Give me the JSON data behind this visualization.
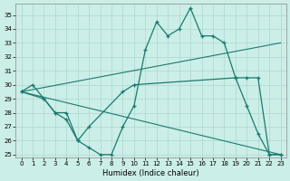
{
  "xlabel": "Humidex (Indice chaleur)",
  "bg_color": "#cceee8",
  "grid_color": "#aad8d0",
  "line_color": "#1a7a6e",
  "xlim": [
    -0.5,
    23.5
  ],
  "ylim": [
    24.8,
    35.8
  ],
  "yticks": [
    25,
    26,
    27,
    28,
    29,
    30,
    31,
    32,
    33,
    34,
    35
  ],
  "xticks": [
    0,
    1,
    2,
    3,
    4,
    5,
    6,
    7,
    8,
    9,
    10,
    11,
    12,
    13,
    14,
    15,
    16,
    17,
    18,
    19,
    20,
    21,
    22,
    23
  ],
  "line1_x": [
    0,
    1,
    2,
    3,
    4,
    5,
    6,
    7,
    8,
    9,
    10,
    11,
    12,
    13,
    14,
    15,
    16,
    17,
    18,
    19,
    20,
    21,
    22,
    23
  ],
  "line1_y": [
    29.5,
    30.0,
    29.0,
    28.0,
    28.0,
    26.0,
    25.5,
    25.0,
    25.0,
    27.0,
    28.5,
    32.5,
    34.5,
    33.5,
    34.0,
    35.5,
    33.5,
    33.5,
    33.0,
    30.5,
    28.5,
    26.5,
    25.0,
    25.0
  ],
  "line2_x": [
    0,
    23
  ],
  "line2_y": [
    29.5,
    33.0
  ],
  "line3_x": [
    0,
    23
  ],
  "line3_y": [
    29.5,
    25.0
  ],
  "line4_x": [
    0,
    2,
    3,
    4,
    5,
    6,
    9,
    10,
    19,
    20,
    21,
    22,
    23
  ],
  "line4_y": [
    29.5,
    29.0,
    28.0,
    27.5,
    26.0,
    27.0,
    29.5,
    30.0,
    30.5,
    30.5,
    30.5,
    25.0,
    25.0
  ]
}
